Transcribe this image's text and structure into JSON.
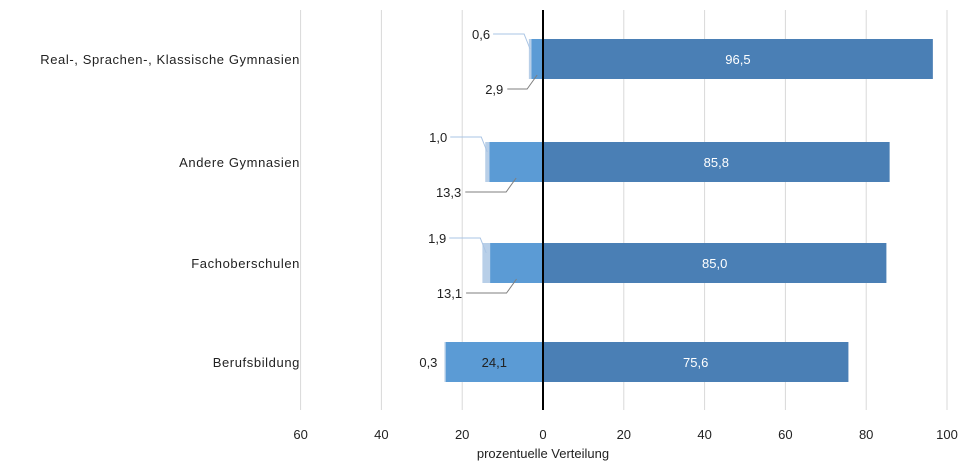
{
  "chart_data": {
    "type": "bar",
    "orientation": "horizontal",
    "stacked": true,
    "diverging": true,
    "categories": [
      "Real-, Sprachen-, Klassische Gymnasien",
      "Andere Gymnasien",
      "Fachoberschulen",
      "Berufsbildung"
    ],
    "series": [
      {
        "values": [
          96.5,
          85.8,
          85.0,
          75.6
        ],
        "labels": [
          "96,5",
          "85,8",
          "85,0",
          "75,6"
        ],
        "direction": "positive",
        "color": "#4a7fb5"
      },
      {
        "values": [
          2.9,
          13.3,
          13.1,
          24.1
        ],
        "labels": [
          "2,9",
          "13,3",
          "13,1",
          "24,1"
        ],
        "direction": "negative",
        "color": "#5b9bd5"
      },
      {
        "values": [
          0.6,
          1.0,
          1.9,
          0.3
        ],
        "labels": [
          "0,6",
          "1,0",
          "1,9",
          "0,3"
        ],
        "direction": "negative",
        "color": "#b8cfe8"
      }
    ],
    "xlabel": "prozentuelle Verteilung",
    "xlim": [
      -60,
      100
    ],
    "x_ticks": [
      -60,
      -40,
      -20,
      0,
      20,
      40,
      60,
      80,
      100
    ],
    "x_tick_labels": [
      "60",
      "40",
      "20",
      "0",
      "20",
      "40",
      "60",
      "80",
      "100"
    ],
    "grid": true,
    "legend": "none"
  }
}
